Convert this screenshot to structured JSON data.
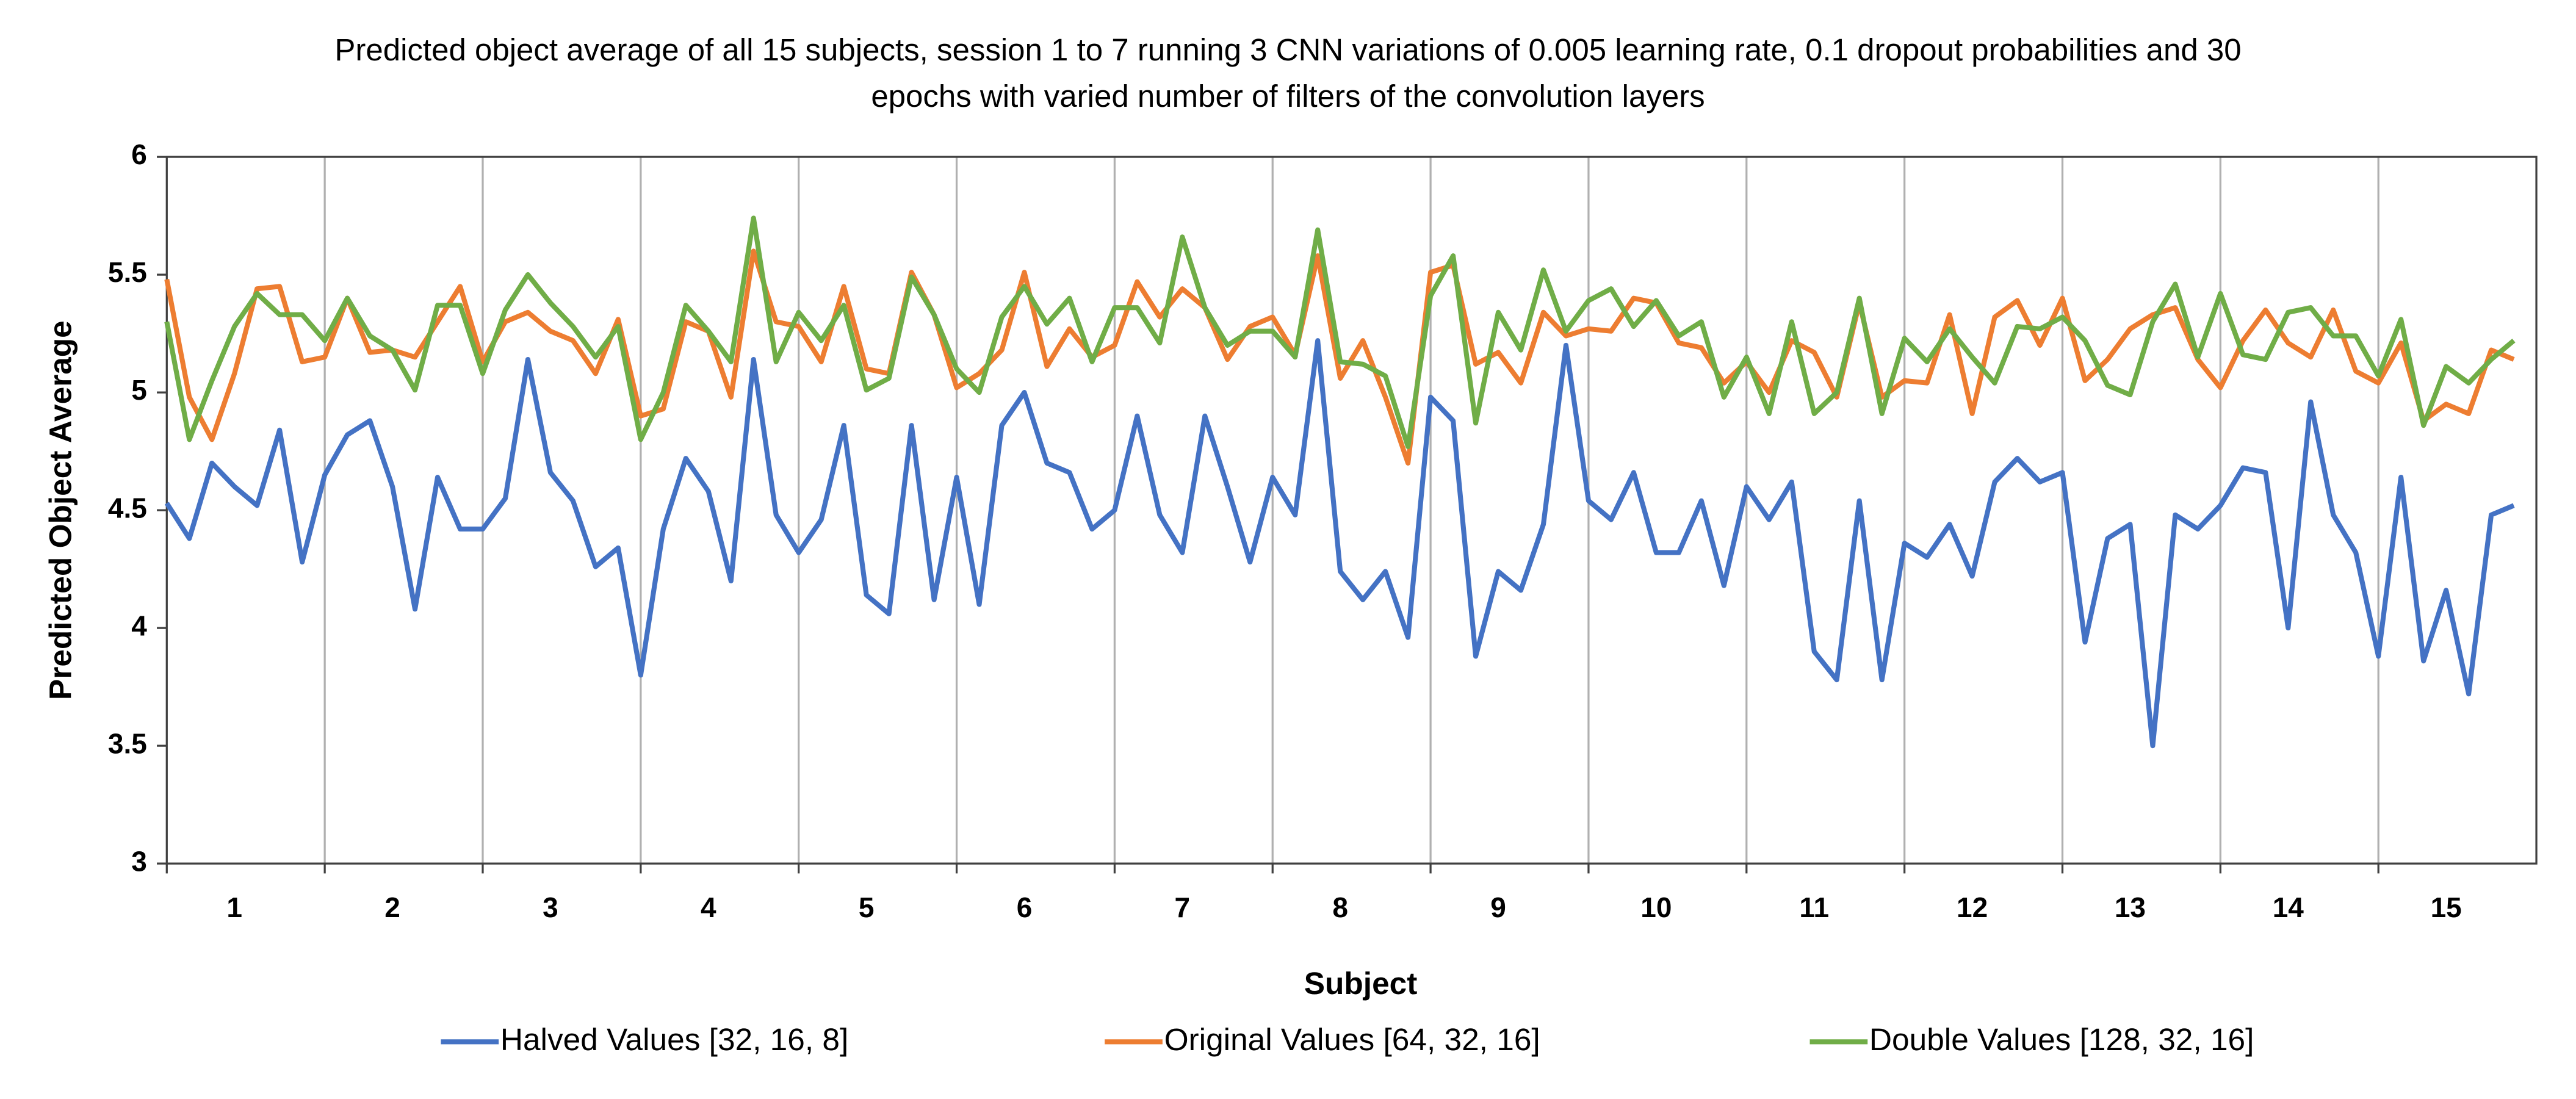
{
  "chart_data": {
    "type": "line",
    "title": "Predicted object average of all 15 subjects, session 1 to 7 running 3 CNN variations of 0.005 learning rate, 0.1 dropout probabilities and 30 epochs with varied number of filters of the convolution layers",
    "x_label": "Subject",
    "y_label": "Predicted Object Average",
    "categories": [
      null,
      null,
      null,
      "1",
      null,
      null,
      null,
      null,
      null,
      null,
      "2",
      null,
      null,
      null,
      null,
      null,
      null,
      "3",
      null,
      null,
      null,
      null,
      null,
      null,
      "4",
      null,
      null,
      null,
      null,
      null,
      null,
      "5",
      null,
      null,
      null,
      null,
      null,
      null,
      "6",
      null,
      null,
      null,
      null,
      null,
      null,
      "7",
      null,
      null,
      null,
      null,
      null,
      null,
      "8",
      null,
      null,
      null,
      null,
      null,
      null,
      "9",
      null,
      null,
      null,
      null,
      null,
      null,
      "10",
      null,
      null,
      null,
      null,
      null,
      null,
      "11",
      null,
      null,
      null,
      null,
      null,
      null,
      "12",
      null,
      null,
      null,
      null,
      null,
      null,
      "13",
      null,
      null,
      null,
      null,
      null,
      null,
      "14",
      null,
      null,
      null,
      null,
      null,
      null,
      "15",
      null,
      null,
      null
    ],
    "series": [
      {
        "name": "Halved Values [32, 16, 8]",
        "color": "#4472c4",
        "values": [
          4.53,
          4.38,
          4.7,
          4.6,
          4.52,
          4.84,
          4.28,
          4.65,
          4.82,
          4.88,
          4.6,
          4.08,
          4.64,
          4.42,
          4.42,
          4.55,
          5.14,
          4.66,
          4.54,
          4.26,
          4.34,
          3.8,
          4.42,
          4.72,
          4.58,
          4.2,
          5.14,
          4.48,
          4.32,
          4.46,
          4.86,
          4.14,
          4.06,
          4.86,
          4.12,
          4.64,
          4.1,
          4.86,
          5.0,
          4.7,
          4.66,
          4.42,
          4.5,
          4.9,
          4.48,
          4.32,
          4.9,
          4.6,
          4.28,
          4.64,
          4.48,
          5.22,
          4.24,
          4.12,
          4.24,
          3.96,
          4.98,
          4.88,
          3.88,
          4.24,
          4.16,
          4.44,
          5.2,
          4.54,
          4.46,
          4.66,
          4.32,
          4.32,
          4.54,
          4.18,
          4.6,
          4.46,
          4.62,
          3.9,
          3.78,
          4.54,
          3.78,
          4.36,
          4.3,
          4.44,
          4.22,
          4.62,
          4.72,
          4.62,
          4.66,
          3.94,
          4.38,
          4.44,
          3.5,
          4.48,
          4.42,
          4.52,
          4.68,
          4.66,
          4.0,
          4.96,
          4.48,
          4.32,
          3.88,
          4.64,
          3.86,
          4.16,
          3.72,
          4.48,
          4.52
        ]
      },
      {
        "name": "Original Values [64, 32, 16]",
        "color": "#ed7d31",
        "values": [
          5.48,
          4.98,
          4.8,
          5.08,
          5.44,
          5.45,
          5.13,
          5.15,
          5.4,
          5.17,
          5.18,
          5.15,
          5.3,
          5.45,
          5.13,
          5.3,
          5.34,
          5.26,
          5.22,
          5.08,
          5.31,
          4.9,
          4.93,
          5.3,
          5.26,
          4.98,
          5.6,
          5.3,
          5.28,
          5.13,
          5.45,
          5.1,
          5.08,
          5.51,
          5.33,
          5.02,
          5.08,
          5.18,
          5.51,
          5.11,
          5.27,
          5.15,
          5.2,
          5.47,
          5.32,
          5.44,
          5.36,
          5.14,
          5.28,
          5.32,
          5.16,
          5.58,
          5.06,
          5.22,
          4.98,
          4.7,
          5.51,
          5.54,
          5.12,
          5.17,
          5.04,
          5.34,
          5.24,
          5.27,
          5.26,
          5.4,
          5.38,
          5.21,
          5.19,
          5.04,
          5.13,
          5.0,
          5.22,
          5.17,
          4.98,
          5.38,
          4.98,
          5.05,
          5.04,
          5.33,
          4.91,
          5.32,
          5.39,
          5.2,
          5.4,
          5.05,
          5.14,
          5.27,
          5.33,
          5.36,
          5.14,
          5.02,
          5.22,
          5.35,
          5.21,
          5.15,
          5.35,
          5.09,
          5.04,
          5.21,
          4.88,
          4.95,
          4.91,
          5.18,
          5.14
        ]
      },
      {
        "name": "Double Values [128, 32, 16]",
        "color": "#70ad47",
        "values": [
          5.3,
          4.8,
          5.05,
          5.28,
          5.42,
          5.33,
          5.33,
          5.22,
          5.4,
          5.24,
          5.18,
          5.01,
          5.37,
          5.37,
          5.08,
          5.35,
          5.5,
          5.38,
          5.28,
          5.15,
          5.28,
          4.8,
          5.0,
          5.37,
          5.26,
          5.13,
          5.74,
          5.13,
          5.34,
          5.22,
          5.37,
          5.01,
          5.06,
          5.49,
          5.33,
          5.1,
          5.0,
          5.32,
          5.45,
          5.29,
          5.4,
          5.13,
          5.36,
          5.36,
          5.21,
          5.66,
          5.36,
          5.2,
          5.26,
          5.26,
          5.15,
          5.69,
          5.13,
          5.12,
          5.07,
          4.77,
          5.41,
          5.58,
          4.87,
          5.34,
          5.18,
          5.52,
          5.26,
          5.39,
          5.44,
          5.28,
          5.39,
          5.24,
          5.3,
          4.98,
          5.15,
          4.91,
          5.3,
          4.91,
          5.0,
          5.4,
          4.91,
          5.23,
          5.13,
          5.27,
          5.15,
          5.04,
          5.28,
          5.27,
          5.32,
          5.22,
          5.03,
          4.99,
          5.3,
          5.46,
          5.15,
          5.42,
          5.16,
          5.14,
          5.34,
          5.36,
          5.24,
          5.24,
          5.07,
          5.31,
          4.86,
          5.11,
          5.04,
          5.14,
          5.22
        ]
      }
    ],
    "ylim": [
      3,
      6
    ],
    "yticks": [
      3,
      3.5,
      4,
      4.5,
      5,
      5.5,
      6
    ],
    "legend": "bottom"
  }
}
